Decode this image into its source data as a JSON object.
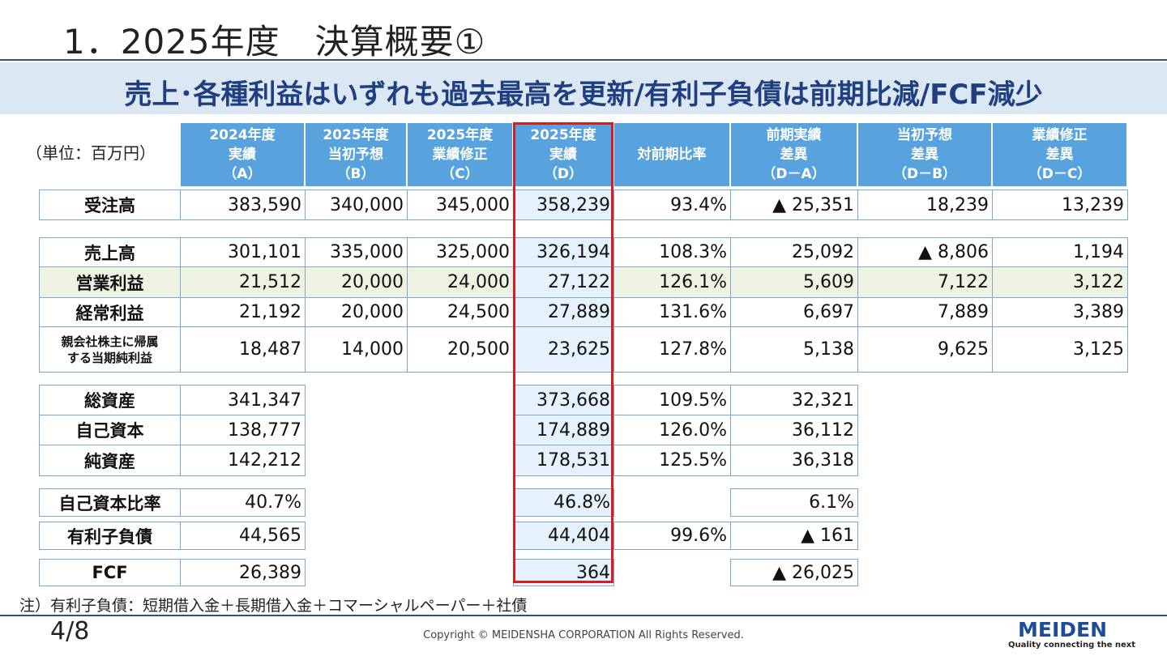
{
  "slide": {
    "title": "1．2025年度　決算概要①",
    "banner": "売上･各種利益はいずれも過去最高を更新/有利子負債は前期比減/FCF減少",
    "unit": "（単位：百万円）",
    "note": "注）有利子負債：短期借入金＋長期借入金＋コマーシャルペーパー＋社債",
    "page": "4/8",
    "copyright": "Copyright © MEIDENSHA CORPORATION All Rights Reserved.",
    "logo": "MEIDEN",
    "tagline": "Quality connecting the next"
  },
  "headers": [
    [
      "2024年度",
      "実績",
      "（A）"
    ],
    [
      "2025年度",
      "当初予想",
      "（B）"
    ],
    [
      "2025年度",
      "業績修正",
      "（C）"
    ],
    [
      "2025年度",
      "実績",
      "（D）"
    ],
    [
      "対前期比率"
    ],
    [
      "前期実績",
      "差異",
      "（D－A）"
    ],
    [
      "当初予想",
      "差異",
      "（D－B）"
    ],
    [
      "業績修正",
      "差異",
      "（D－C）"
    ]
  ],
  "rows": [
    {
      "label": [
        "受注高"
      ],
      "values": [
        "383,590",
        "340,000",
        "345,000",
        "358,239",
        "93.4%",
        "▲ 25,351",
        "18,239",
        "13,239"
      ]
    },
    {
      "label": [
        "売上高"
      ],
      "values": [
        "301,101",
        "335,000",
        "325,000",
        "326,194",
        "108.3%",
        "25,092",
        "▲ 8,806",
        "1,194"
      ]
    },
    {
      "label": [
        "営業利益"
      ],
      "values": [
        "21,512",
        "20,000",
        "24,000",
        "27,122",
        "126.1%",
        "5,609",
        "7,122",
        "3,122"
      ]
    },
    {
      "label": [
        "経常利益"
      ],
      "values": [
        "21,192",
        "20,000",
        "24,500",
        "27,889",
        "131.6%",
        "6,697",
        "7,889",
        "3,389"
      ]
    },
    {
      "label": [
        "親会社株主に帰属",
        "する当期純利益"
      ],
      "values": [
        "18,487",
        "14,000",
        "20,500",
        "23,625",
        "127.8%",
        "5,138",
        "9,625",
        "3,125"
      ]
    },
    {
      "label": [
        "総資産"
      ],
      "values": [
        "341,347",
        "",
        "",
        "373,668",
        "109.5%",
        "32,321",
        "",
        ""
      ]
    },
    {
      "label": [
        "自己資本"
      ],
      "values": [
        "138,777",
        "",
        "",
        "174,889",
        "126.0%",
        "36,112",
        "",
        ""
      ]
    },
    {
      "label": [
        "純資産"
      ],
      "values": [
        "142,212",
        "",
        "",
        "178,531",
        "125.5%",
        "36,318",
        "",
        ""
      ]
    },
    {
      "label": [
        "自己資本比率"
      ],
      "values": [
        "40.7%",
        "",
        "",
        "46.8%",
        "",
        "6.1%",
        "",
        ""
      ]
    },
    {
      "label": [
        "有利子負債"
      ],
      "values": [
        "44,565",
        "",
        "",
        "44,404",
        "99.6%",
        "▲ 161",
        "",
        ""
      ]
    },
    {
      "label": [
        "FCF"
      ],
      "values": [
        "26,389",
        "",
        "",
        "364",
        "",
        "▲ 26,025",
        "",
        ""
      ]
    }
  ]
}
